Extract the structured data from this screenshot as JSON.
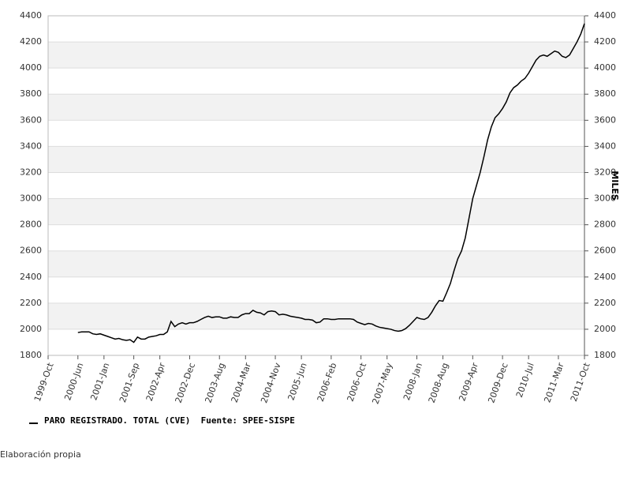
{
  "chart_data": {
    "type": "line",
    "ylabel": "MILES",
    "note": "Elaboración propia",
    "x": [
      "2000-06",
      "2000-07",
      "2000-08",
      "2000-09",
      "2000-10",
      "2000-11",
      "2000-12",
      "2001-01",
      "2001-02",
      "2001-03",
      "2001-04",
      "2001-05",
      "2001-06",
      "2001-07",
      "2001-08",
      "2001-09",
      "2001-10",
      "2001-11",
      "2001-12",
      "2002-01",
      "2002-02",
      "2002-03",
      "2002-04",
      "2002-05",
      "2002-06",
      "2002-07",
      "2002-08",
      "2002-09",
      "2002-10",
      "2002-11",
      "2002-12",
      "2003-01",
      "2003-02",
      "2003-03",
      "2003-04",
      "2003-05",
      "2003-06",
      "2003-07",
      "2003-08",
      "2003-09",
      "2003-10",
      "2003-11",
      "2003-12",
      "2004-01",
      "2004-02",
      "2004-03",
      "2004-04",
      "2004-05",
      "2004-06",
      "2004-07",
      "2004-08",
      "2004-09",
      "2004-10",
      "2004-11",
      "2004-12",
      "2005-01",
      "2005-02",
      "2005-03",
      "2005-04",
      "2005-05",
      "2005-06",
      "2005-07",
      "2005-08",
      "2005-09",
      "2005-10",
      "2005-11",
      "2005-12",
      "2006-01",
      "2006-02",
      "2006-03",
      "2006-04",
      "2006-05",
      "2006-06",
      "2006-07",
      "2006-08",
      "2006-09",
      "2006-10",
      "2006-11",
      "2006-12",
      "2007-01",
      "2007-02",
      "2007-03",
      "2007-04",
      "2007-05",
      "2007-06",
      "2007-07",
      "2007-08",
      "2007-09",
      "2007-10",
      "2007-11",
      "2007-12",
      "2008-01",
      "2008-02",
      "2008-03",
      "2008-04",
      "2008-05",
      "2008-06",
      "2008-07",
      "2008-08",
      "2008-09",
      "2008-10",
      "2008-11",
      "2008-12",
      "2009-01",
      "2009-02",
      "2009-03",
      "2009-04",
      "2009-05",
      "2009-06",
      "2009-07",
      "2009-08",
      "2009-09",
      "2009-10",
      "2009-11",
      "2009-12",
      "2010-01",
      "2010-02",
      "2010-03",
      "2010-04",
      "2010-05",
      "2010-06",
      "2010-07",
      "2010-08",
      "2010-09",
      "2010-10",
      "2010-11",
      "2010-12",
      "2011-01",
      "2011-02",
      "2011-03",
      "2011-04",
      "2011-05",
      "2011-06",
      "2011-07",
      "2011-08",
      "2011-09",
      "2011-10"
    ],
    "series": [
      {
        "name": "PARO REGISTRADO. TOTAL (CVE)  Fuente: SPEE-SISPE",
        "color": "#000000",
        "values": [
          1975,
          1980,
          1980,
          1980,
          1965,
          1960,
          1965,
          1955,
          1945,
          1935,
          1925,
          1930,
          1920,
          1915,
          1920,
          1900,
          1940,
          1925,
          1925,
          1940,
          1945,
          1950,
          1960,
          1960,
          1980,
          2060,
          2020,
          2040,
          2050,
          2040,
          2050,
          2050,
          2060,
          2075,
          2090,
          2100,
          2090,
          2095,
          2095,
          2085,
          2085,
          2095,
          2090,
          2090,
          2110,
          2120,
          2120,
          2145,
          2130,
          2125,
          2110,
          2135,
          2140,
          2135,
          2110,
          2115,
          2110,
          2100,
          2095,
          2090,
          2085,
          2075,
          2075,
          2070,
          2050,
          2055,
          2080,
          2080,
          2075,
          2075,
          2080,
          2080,
          2080,
          2080,
          2075,
          2055,
          2045,
          2035,
          2045,
          2040,
          2025,
          2015,
          2010,
          2005,
          2000,
          1990,
          1985,
          1990,
          2005,
          2030,
          2060,
          2090,
          2080,
          2075,
          2090,
          2130,
          2180,
          2220,
          2215,
          2280,
          2350,
          2450,
          2540,
          2600,
          2700,
          2850,
          3000,
          3100,
          3200,
          3320,
          3450,
          3550,
          3620,
          3650,
          3690,
          3740,
          3810,
          3850,
          3870,
          3900,
          3920,
          3960,
          4010,
          4060,
          4090,
          4100,
          4090,
          4110,
          4130,
          4120,
          4090,
          4080,
          4100,
          4150,
          4200,
          4260,
          4340
        ]
      }
    ],
    "xlim": [
      "1999-10",
      "2011-10"
    ],
    "xticks": [
      {
        "value": "1999-10",
        "label": "1999-Oct"
      },
      {
        "value": "2000-06",
        "label": "2000-Jun"
      },
      {
        "value": "2001-01",
        "label": "2001-Jan"
      },
      {
        "value": "2001-09",
        "label": "2001-Sep"
      },
      {
        "value": "2002-04",
        "label": "2002-Apr"
      },
      {
        "value": "2002-12",
        "label": "2002-Dec"
      },
      {
        "value": "2003-08",
        "label": "2003-Aug"
      },
      {
        "value": "2004-03",
        "label": "2004-Mar"
      },
      {
        "value": "2004-11",
        "label": "2004-Nov"
      },
      {
        "value": "2005-06",
        "label": "2005-Jun"
      },
      {
        "value": "2006-02",
        "label": "2006-Feb"
      },
      {
        "value": "2006-10",
        "label": "2006-Oct"
      },
      {
        "value": "2007-05",
        "label": "2007-May"
      },
      {
        "value": "2008-01",
        "label": "2008-Jan"
      },
      {
        "value": "2008-08",
        "label": "2008-Aug"
      },
      {
        "value": "2009-04",
        "label": "2009-Apr"
      },
      {
        "value": "2009-12",
        "label": "2009-Dec"
      },
      {
        "value": "2010-07",
        "label": "2010-Jul"
      },
      {
        "value": "2011-03",
        "label": "2011-Mar"
      },
      {
        "value": "2011-10",
        "label": "2011-Oct"
      }
    ],
    "ylim": [
      1800,
      4400
    ],
    "yticks": [
      1800,
      2000,
      2200,
      2400,
      2600,
      2800,
      3000,
      3200,
      3400,
      3600,
      3800,
      4000,
      4200,
      4400
    ],
    "grid": true
  }
}
